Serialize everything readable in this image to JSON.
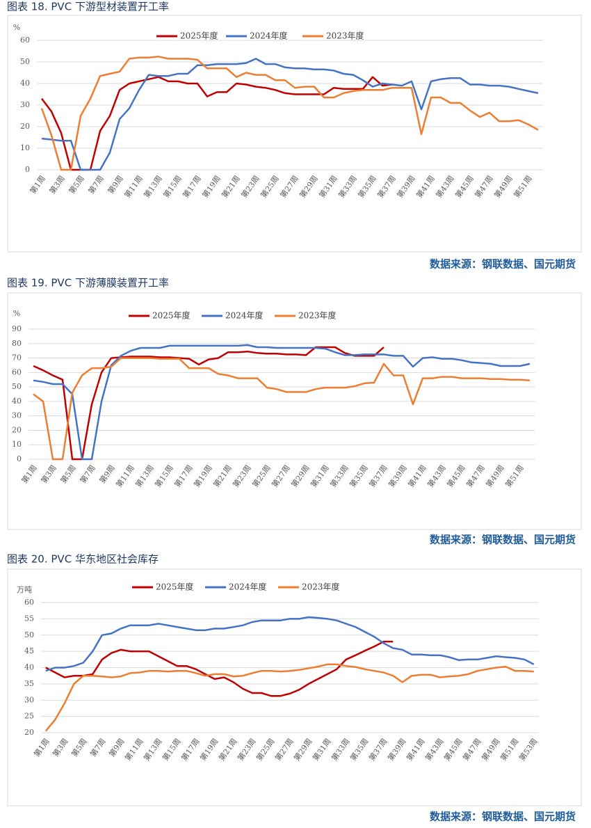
{
  "chart_data": [
    {
      "type": "line",
      "title": "图表 18. PVC 下游型材装置开工率",
      "y_label": "%",
      "source": "数据来源：钢联数据、国元期货",
      "categories": [
        "第1周",
        null,
        "第3周",
        null,
        "第5周",
        null,
        "第7周",
        null,
        "第9周",
        null,
        "第11周",
        null,
        "第13周",
        null,
        "第15周",
        null,
        "第17周",
        null,
        "第19周",
        null,
        "第21周",
        null,
        "第23周",
        null,
        "第25周",
        null,
        "第27周",
        null,
        "第29周",
        null,
        "第31周",
        null,
        "第33周",
        null,
        "第35周",
        null,
        "第37周",
        null,
        "第39周",
        null,
        "第41周",
        null,
        "第43周",
        null,
        "第45周",
        null,
        "第47周",
        null,
        "第49周",
        null,
        "第51周",
        null
      ],
      "ylim": [
        0,
        60
      ],
      "yticks": [
        0,
        10,
        20,
        30,
        40,
        50,
        60
      ],
      "grid": true,
      "series": [
        {
          "name": "2025年度",
          "color": "#c00000",
          "values": [
            33,
            27,
            17,
            0,
            0,
            0,
            18,
            25,
            37,
            40,
            41,
            42,
            43,
            41,
            41,
            40,
            40,
            34,
            36,
            36,
            40,
            39.5,
            38.5,
            38,
            37,
            35.5,
            35,
            35,
            35,
            35,
            38,
            37.5,
            37.5,
            37.5,
            43,
            39,
            39.5,
            null,
            null,
            null,
            null,
            null,
            null,
            null,
            null,
            null,
            null,
            null,
            null,
            null,
            null,
            null
          ]
        },
        {
          "name": "2024年度",
          "color": "#4472c4",
          "values": [
            14.5,
            14,
            13.5,
            13.5,
            0,
            0,
            0,
            8,
            23.5,
            28.5,
            37,
            44,
            43.5,
            43.5,
            44.5,
            44.5,
            48.5,
            48.5,
            49,
            49,
            49,
            49.5,
            51.5,
            49,
            49,
            47.5,
            47,
            47,
            46.5,
            46.5,
            46,
            44.5,
            44,
            41.5,
            38.5,
            40,
            39.5,
            39,
            41,
            28,
            41,
            42,
            42.5,
            42.5,
            39.5,
            39.5,
            39,
            39,
            38.5,
            37.5,
            36.5,
            35.5
          ]
        },
        {
          "name": "2023年度",
          "color": "#ed7d31",
          "values": [
            28.5,
            16,
            0,
            0,
            25,
            33,
            43.5,
            44.5,
            45.5,
            51.5,
            52,
            52,
            52.5,
            51.5,
            51.5,
            51.5,
            51,
            47,
            47,
            47,
            43,
            45,
            44,
            44,
            41.5,
            41.5,
            38,
            38.5,
            38.5,
            33.5,
            33.5,
            35.5,
            36.5,
            37,
            37,
            37,
            38,
            38,
            38,
            16.5,
            33.5,
            33.5,
            31,
            31,
            27.5,
            24.5,
            26.5,
            22.5,
            22.5,
            23,
            21,
            18.5
          ]
        }
      ]
    },
    {
      "type": "line",
      "title": "图表 19. PVC 下游薄膜装置开工率",
      "y_label": "%",
      "source": "数据来源：钢联数据、国元期货",
      "categories": [
        "第1周",
        null,
        "第3周",
        null,
        "第5周",
        null,
        "第7周",
        null,
        "第9周",
        null,
        "第11周",
        null,
        "第13周",
        null,
        "第15周",
        null,
        "第17周",
        null,
        "第19周",
        null,
        "第21周",
        null,
        "第23周",
        null,
        "第25周",
        null,
        "第27周",
        null,
        "第29周",
        null,
        "第31周",
        null,
        "第33周",
        null,
        "第35周",
        null,
        "第37周",
        null,
        "第39周",
        null,
        "第41周",
        null,
        "第43周",
        null,
        "第45周",
        null,
        "第47周",
        null,
        "第49周",
        null,
        "第51周",
        null
      ],
      "ylim": [
        0,
        90
      ],
      "yticks": [
        0,
        10,
        20,
        30,
        40,
        50,
        60,
        70,
        80,
        90
      ],
      "grid": true,
      "series": [
        {
          "name": "2025年度",
          "color": "#c00000",
          "values": [
            64.5,
            61.5,
            58,
            55,
            0,
            0,
            38,
            60,
            70,
            70.5,
            71,
            71,
            71,
            70.5,
            70.5,
            70,
            69.5,
            65.5,
            69,
            70,
            74,
            74,
            74.5,
            73.5,
            73,
            73,
            72.5,
            72.5,
            72,
            77.5,
            77.5,
            77.5,
            73.5,
            71.5,
            71.5,
            71.5,
            77.5,
            null,
            null,
            null,
            null,
            null,
            null,
            null,
            null,
            null,
            null,
            null,
            null,
            null,
            null,
            null
          ]
        },
        {
          "name": "2024年度",
          "color": "#4472c4",
          "values": [
            54.5,
            53.5,
            52,
            52,
            45,
            0,
            0,
            40,
            65,
            71.5,
            75,
            77,
            77,
            77,
            78.5,
            78.5,
            78.5,
            78.5,
            78.5,
            78.5,
            78.5,
            78.5,
            79,
            77.5,
            77.5,
            77,
            77,
            77,
            77,
            77,
            76.5,
            74,
            72,
            72,
            72.5,
            72.5,
            72.5,
            71.5,
            71.5,
            64,
            70,
            70.5,
            69.5,
            69.5,
            68.5,
            67,
            66.5,
            66,
            64.5,
            64.5,
            64.5,
            66
          ]
        },
        {
          "name": "2023年度",
          "color": "#ed7d31",
          "values": [
            45,
            40,
            0,
            0,
            46,
            58,
            63,
            63,
            64,
            70,
            70,
            70,
            70,
            69.5,
            69.5,
            69.5,
            63,
            63,
            63,
            59,
            58,
            56,
            56,
            56,
            49.5,
            48.5,
            46.5,
            46.5,
            46.5,
            48.5,
            49.5,
            49.5,
            49.5,
            50.5,
            52.5,
            53,
            66,
            58,
            58,
            38,
            56,
            56,
            57,
            57,
            56,
            56,
            56,
            55.5,
            55.5,
            55,
            55,
            54.5
          ]
        }
      ]
    },
    {
      "type": "line",
      "title": "图表 20. PVC 华东地区社会库存",
      "y_label": "万吨",
      "source": "数据来源：钢联数据、国元期货",
      "categories": [
        "第1周",
        null,
        "第3周",
        null,
        "第5周",
        null,
        "第7周",
        null,
        "第9周",
        null,
        "第11周",
        null,
        "第13周",
        null,
        "第15周",
        null,
        "第17周",
        null,
        "第19周",
        null,
        "第21周",
        null,
        "第23周",
        null,
        "第25周",
        null,
        "第27周",
        null,
        "第29周",
        null,
        "第31周",
        null,
        "第33周",
        null,
        "第35周",
        null,
        "第37周",
        null,
        "第39周",
        null,
        "第41周",
        null,
        "第43周",
        null,
        "第45周",
        null,
        "第47周",
        null,
        "第49周",
        null,
        "第51周",
        null,
        "第53周"
      ],
      "ylim": [
        20,
        60
      ],
      "yticks": [
        20,
        25,
        30,
        35,
        40,
        45,
        50,
        55,
        60
      ],
      "grid": true,
      "series": [
        {
          "name": "2025年度",
          "color": "#c00000",
          "values": [
            40,
            38.5,
            37,
            37.5,
            37.5,
            38,
            42.5,
            44.5,
            45.5,
            45,
            45,
            45,
            43.5,
            42,
            40.5,
            40.5,
            39.5,
            38,
            36.5,
            37,
            35.5,
            33.5,
            32.2,
            32.2,
            31.3,
            31.3,
            32,
            33.2,
            35,
            36.5,
            38,
            39.5,
            42.5,
            43.8,
            45.2,
            46.5,
            48,
            48,
            null,
            null,
            null,
            null,
            null,
            null,
            null,
            null,
            null,
            null,
            null,
            null,
            null,
            null,
            null
          ]
        },
        {
          "name": "2024年度",
          "color": "#4472c4",
          "values": [
            39,
            40,
            40,
            40.5,
            41.5,
            45,
            50,
            50.5,
            52,
            53,
            53,
            53,
            53.5,
            53,
            52.5,
            52,
            51.5,
            51.5,
            52,
            52,
            52.5,
            53,
            54,
            54.5,
            54.5,
            54.5,
            55,
            55,
            55.5,
            55.3,
            55,
            54.5,
            53.5,
            52.5,
            51,
            49.5,
            47.5,
            46,
            45.5,
            44,
            44,
            43.8,
            43.8,
            43.2,
            42.3,
            42.5,
            42.5,
            43,
            43.5,
            43.2,
            43,
            42.5,
            41
          ]
        },
        {
          "name": "2023年度",
          "color": "#ed7d31",
          "values": [
            20.5,
            24,
            29,
            35,
            37.5,
            37.5,
            37.3,
            37,
            37.3,
            38.3,
            38.5,
            39,
            39,
            38.8,
            39,
            39,
            38.3,
            37.5,
            38,
            38,
            37.3,
            37.5,
            38.3,
            39,
            39,
            38.8,
            39,
            39.3,
            39.8,
            40.3,
            41,
            41,
            40.5,
            40.2,
            39.5,
            39,
            38.5,
            37.5,
            35.5,
            37.5,
            37.8,
            37.8,
            37,
            37.3,
            37.5,
            38,
            39,
            39.5,
            40,
            40.3,
            39,
            39,
            38.8
          ]
        }
      ]
    }
  ]
}
